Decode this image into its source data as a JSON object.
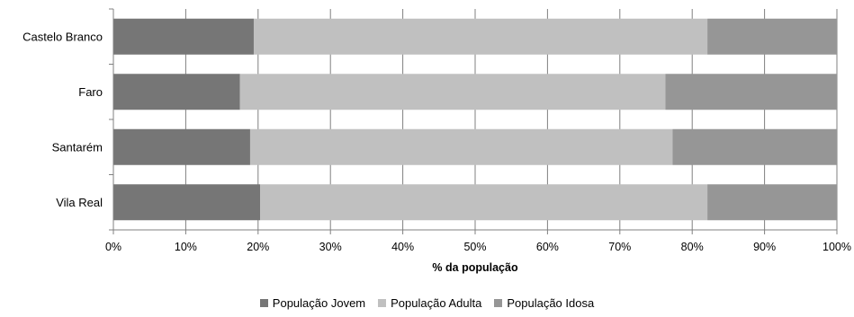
{
  "chart_data": {
    "type": "bar",
    "orientation": "horizontal",
    "stacked": "percent",
    "categories": [
      "Castelo Branco",
      "Faro",
      "Santarém",
      "Vila Real"
    ],
    "series": [
      {
        "name": "População Jovem",
        "color": "#767676",
        "values": [
          19.4,
          17.5,
          18.9,
          20.3
        ]
      },
      {
        "name": "População Adulta",
        "color": "#c0c0c0",
        "values": [
          62.7,
          58.8,
          58.4,
          61.8
        ]
      },
      {
        "name": "População Idosa",
        "color": "#969696",
        "values": [
          17.9,
          23.7,
          22.7,
          17.9
        ]
      }
    ],
    "xticks": [
      "0%",
      "10%",
      "20%",
      "30%",
      "40%",
      "50%",
      "60%",
      "70%",
      "80%",
      "90%",
      "100%"
    ],
    "xlabel": "% da população",
    "ylabel": "",
    "xlim": [
      0,
      100
    ],
    "grid": true,
    "legend_position": "bottom"
  }
}
